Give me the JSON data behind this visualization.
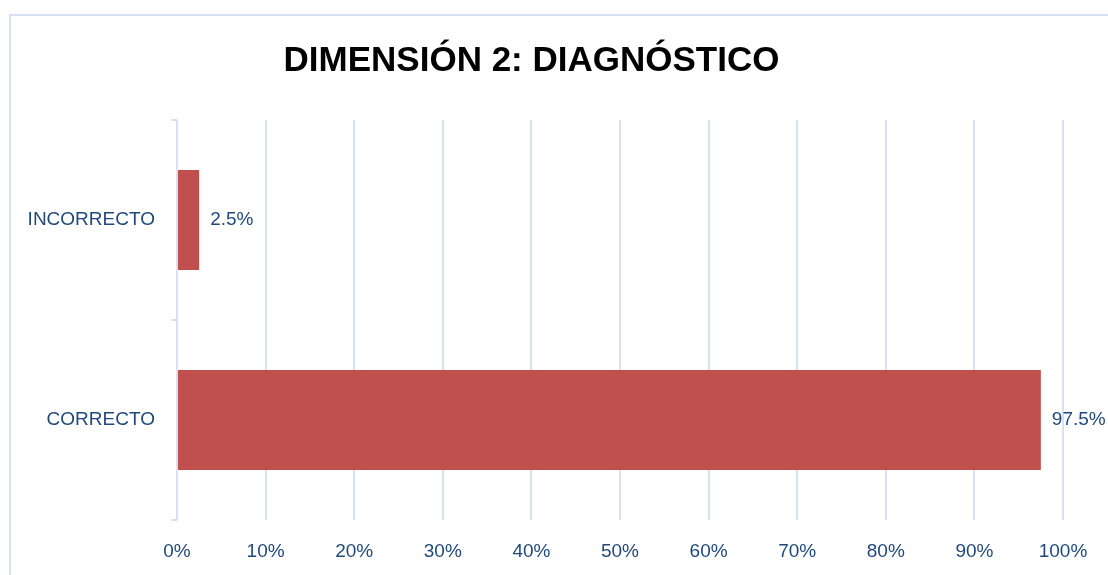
{
  "chart_data": {
    "type": "bar",
    "orientation": "horizontal",
    "title": "DIMENSIÓN 2: DIAGNÓSTICO",
    "categories": [
      "INCORRECTO",
      "CORRECTO"
    ],
    "values": [
      2.5,
      97.5
    ],
    "color": "#c0504d",
    "value_labels": [
      "2.5%",
      "97.5%"
    ],
    "xlim": [
      0,
      100
    ],
    "xticks": [
      {
        "value": 0,
        "label": "0%"
      },
      {
        "value": 10,
        "label": "10%"
      },
      {
        "value": 20,
        "label": "20%"
      },
      {
        "value": 30,
        "label": "30%"
      },
      {
        "value": 40,
        "label": "40%"
      },
      {
        "value": 50,
        "label": "50%"
      },
      {
        "value": 60,
        "label": "60%"
      },
      {
        "value": 70,
        "label": "70%"
      },
      {
        "value": 80,
        "label": "80%"
      },
      {
        "value": 90,
        "label": "90%"
      },
      {
        "value": 100,
        "label": "100%"
      }
    ],
    "grid": "x"
  }
}
